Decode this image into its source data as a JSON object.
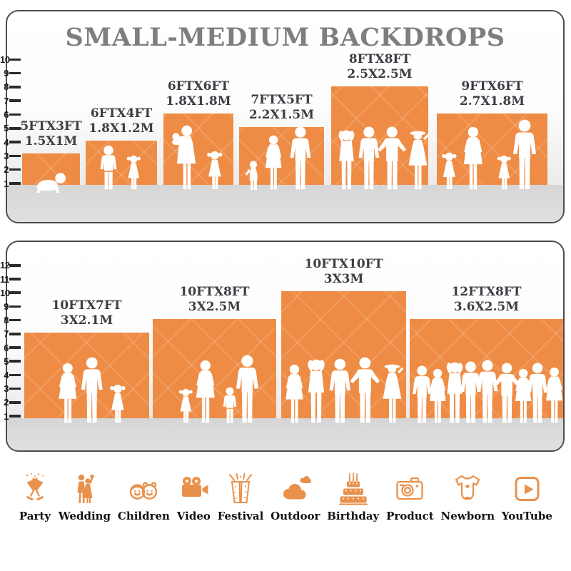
{
  "title": "SMALL-MEDIUM BACKDROPS",
  "panels": {
    "top": {
      "ruler": [
        "10",
        "9",
        "8",
        "7",
        "6",
        "5",
        "4",
        "3",
        "2",
        "1"
      ],
      "boxes": [
        {
          "ft": "5FTX3FT",
          "m": "1.5X1M"
        },
        {
          "ft": "6FTX4FT",
          "m": "1.8X1.2M"
        },
        {
          "ft": "6FTX6FT",
          "m": "1.8X1.8M"
        },
        {
          "ft": "7FTX5FT",
          "m": "2.2X1.5M"
        },
        {
          "ft": "8FTX8FT",
          "m": "2.5X2.5M"
        },
        {
          "ft": "9FTX6FT",
          "m": "2.7X1.8M"
        }
      ]
    },
    "bottom": {
      "ruler": [
        "12",
        "11",
        "10",
        "9",
        "8",
        "7",
        "6",
        "5",
        "4",
        "3",
        "2",
        "1"
      ],
      "boxes": [
        {
          "ft": "10FTX7FT",
          "m": "3X2.1M"
        },
        {
          "ft": "10FTX8FT",
          "m": "3X2.5M"
        },
        {
          "ft": "10FTX10FT",
          "m": "3X3M"
        },
        {
          "ft": "12FTX8FT",
          "m": "3.6X2.5M"
        }
      ]
    }
  },
  "categories": [
    {
      "label": "Party",
      "icon": "party-glasses-icon"
    },
    {
      "label": "Wedding",
      "icon": "wedding-couple-icon"
    },
    {
      "label": "Children",
      "icon": "children-faces-icon"
    },
    {
      "label": "Video",
      "icon": "film-camera-icon"
    },
    {
      "label": "Festival",
      "icon": "gift-box-icon"
    },
    {
      "label": "Outdoor",
      "icon": "clouds-icon"
    },
    {
      "label": "Birthday",
      "icon": "birthday-cake-icon"
    },
    {
      "label": "Product",
      "icon": "photo-camera-icon"
    },
    {
      "label": "Newborn",
      "icon": "baby-onesie-icon"
    },
    {
      "label": "YouTube",
      "icon": "youtube-play-icon"
    }
  ],
  "colors": {
    "backdrop_orange": "#EE8C45",
    "icon_orange": "#E8914C",
    "title_gray": "#7E7E7E",
    "label_dark": "#3D3D44"
  },
  "chart_data": [
    {
      "type": "bar",
      "title": "SMALL-MEDIUM BACKDROPS",
      "categories": [
        "5FTX3FT",
        "6FTX4FT",
        "6FTX6FT",
        "7FTX5FT",
        "8FTX8FT",
        "9FTX6FT"
      ],
      "series": [
        {
          "name": "width_ft",
          "values": [
            5,
            6,
            6,
            7,
            8,
            9
          ]
        },
        {
          "name": "height_ft",
          "values": [
            3,
            4,
            6,
            5,
            8,
            6
          ]
        },
        {
          "name": "width_m",
          "values": [
            1.5,
            1.8,
            1.8,
            2.2,
            2.5,
            2.7
          ]
        },
        {
          "name": "height_m",
          "values": [
            1,
            1.2,
            1.8,
            1.5,
            2.5,
            1.8
          ]
        }
      ],
      "ylabel": "feet",
      "ylim": [
        0,
        10
      ],
      "legend": "none"
    },
    {
      "type": "bar",
      "categories": [
        "10FTX7FT",
        "10FTX8FT",
        "10FTX10FT",
        "12FTX8FT"
      ],
      "series": [
        {
          "name": "width_ft",
          "values": [
            10,
            10,
            10,
            12
          ]
        },
        {
          "name": "height_ft",
          "values": [
            7,
            8,
            10,
            8
          ]
        },
        {
          "name": "width_m",
          "values": [
            3,
            3,
            3,
            3.6
          ]
        },
        {
          "name": "height_m",
          "values": [
            2.1,
            2.5,
            3,
            2.5
          ]
        }
      ],
      "ylabel": "feet",
      "ylim": [
        0,
        12
      ],
      "legend": "none"
    }
  ]
}
